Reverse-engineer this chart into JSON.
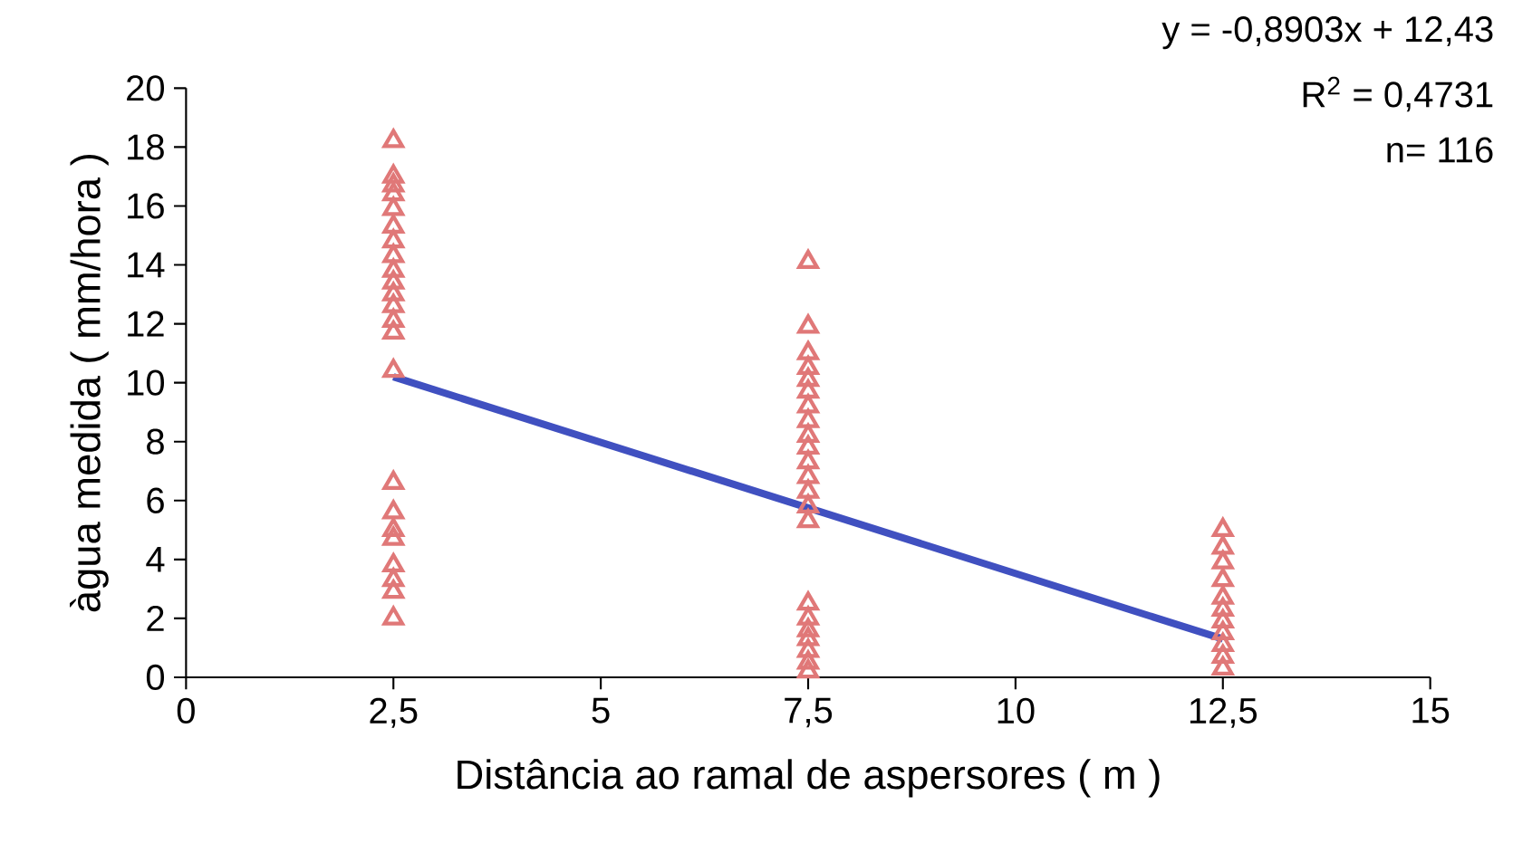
{
  "chart_data": {
    "type": "scatter",
    "xlabel": "Distância ao ramal de aspersores ( m )",
    "ylabel": "àgua medida ( mm/hora )",
    "xlim": [
      0,
      15
    ],
    "ylim": [
      0,
      20
    ],
    "xticks": [
      0,
      {
        "value": 2.5,
        "label": "2,5"
      },
      5,
      {
        "value": 7.5,
        "label": "7,5"
      },
      10,
      {
        "value": 12.5,
        "label": "12,5"
      },
      15
    ],
    "yticks": [
      0,
      2,
      4,
      6,
      8,
      10,
      12,
      14,
      16,
      18,
      20
    ],
    "series": [
      {
        "marker": "triangle",
        "color": "#e07878",
        "x": [
          2.5,
          2.5,
          2.5,
          2.5,
          2.5,
          2.5,
          2.5,
          2.5,
          2.5,
          2.5,
          2.5,
          2.5,
          2.5,
          2.5,
          2.5,
          2.5,
          2.5,
          2.5,
          2.5,
          2.5,
          2.5,
          2.5,
          2.5,
          7.5,
          7.5,
          7.5,
          7.5,
          7.5,
          7.5,
          7.5,
          7.5,
          7.5,
          7.5,
          7.5,
          7.5,
          7.5,
          7.5,
          7.5,
          7.5,
          7.5,
          7.5,
          7.5,
          7.5,
          7.5,
          7.5,
          12.5,
          12.5,
          12.5,
          12.5,
          12.5,
          12.5,
          12.5,
          12.5,
          12.5,
          12.5,
          12.5
        ],
        "values": [
          18.2,
          17.0,
          16.7,
          16.4,
          15.9,
          15.3,
          14.8,
          14.3,
          13.8,
          13.4,
          13.0,
          12.6,
          12.1,
          11.7,
          10.4,
          6.6,
          5.6,
          5.0,
          4.7,
          3.8,
          3.3,
          2.9,
          2.0,
          14.1,
          11.9,
          11.0,
          10.5,
          10.1,
          9.7,
          9.2,
          8.7,
          8.2,
          7.8,
          7.3,
          6.8,
          6.3,
          5.8,
          5.3,
          2.5,
          2.0,
          1.6,
          1.3,
          0.9,
          0.5,
          0.2,
          5.0,
          4.4,
          3.9,
          3.3,
          2.7,
          2.3,
          1.9,
          1.5,
          1.1,
          0.7,
          0.3
        ]
      },
      {
        "type": "line",
        "marker": "none",
        "color": "#4050c0",
        "x": [
          2.5,
          12.5
        ],
        "values": [
          10.2,
          1.3
        ]
      }
    ],
    "annotations": [
      "y = -0,8903x + 12,43",
      "R$^{2}$ = 0,4731",
      "n= 116"
    ]
  }
}
